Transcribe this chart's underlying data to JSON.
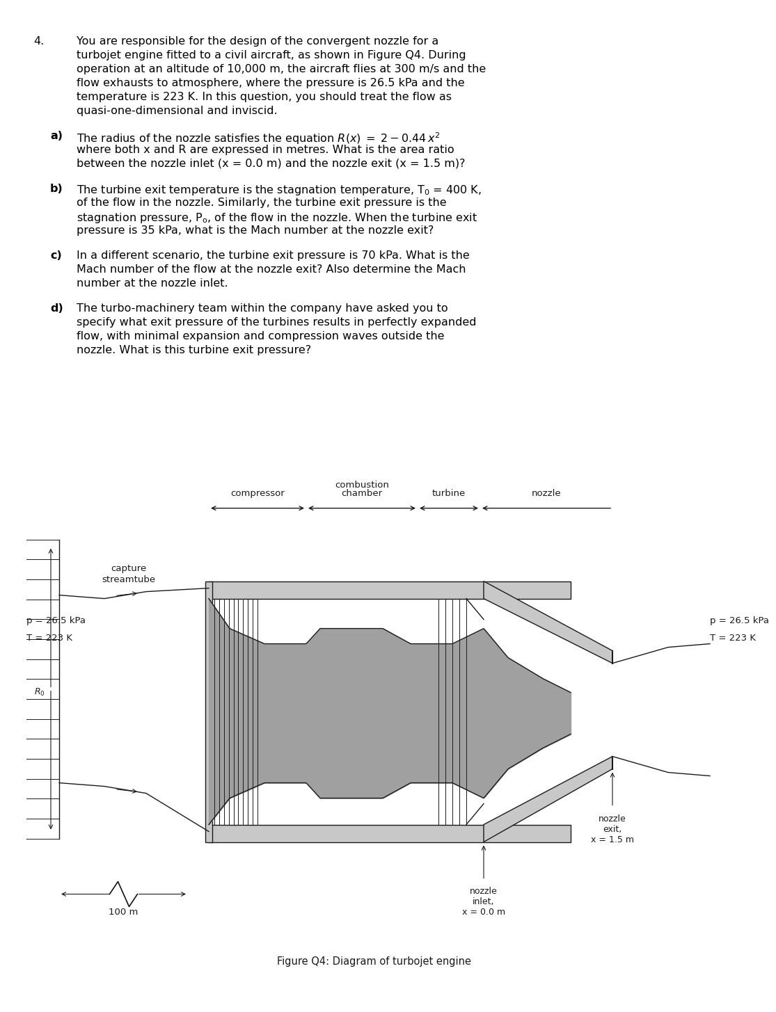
{
  "bg_color": "#ffffff",
  "text_color": "#000000",
  "font_size": 11.5,
  "font_size_small": 9.5,
  "fig_caption": "Figure Q4: Diagram of turbojet engine",
  "label_compressor": "compressor",
  "label_combustion": "combustion",
  "label_chamber": "chamber",
  "label_turbine": "turbine",
  "label_nozzle": "nozzle",
  "left_p": "p = 26.5 kPa",
  "left_T": "T = 223 K",
  "right_p": "p = 26.5 kPa",
  "right_T": "T = 223 K",
  "capture_label": "capture\nstreamtube",
  "dist_label": "100 m",
  "label_nozzle_inlet": "nozzle\ninlet,\nx = 0.0 m",
  "label_nozzle_exit": "nozzle\nexit,\nx = 1.5 m",
  "gray_outer": "#c8c8c8",
  "gray_body": "#a0a0a0",
  "gray_dark": "#707070",
  "line_color": "#1a1a1a"
}
